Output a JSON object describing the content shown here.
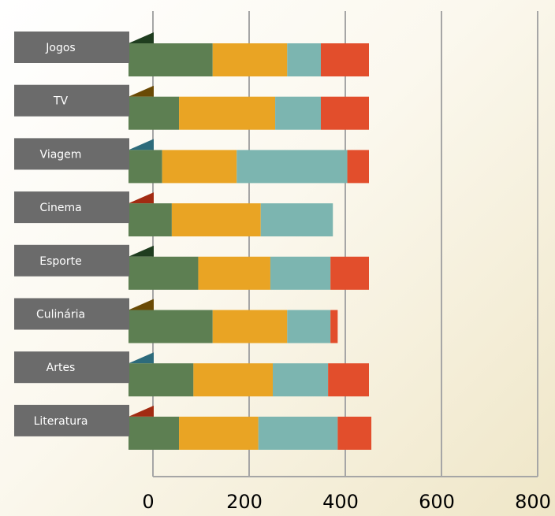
{
  "chart_data": {
    "type": "bar",
    "orientation": "horizontal",
    "stacked": true,
    "categories": [
      "Jogos",
      "TV",
      "Viagem",
      "Cinema",
      "Esporte",
      "Culinária",
      "Artes",
      "Literatura"
    ],
    "series": [
      {
        "color": "#5d7f52",
        "values": [
          175,
          105,
          70,
          90,
          145,
          175,
          135,
          105
        ]
      },
      {
        "color": "#e9a424",
        "values": [
          155,
          200,
          155,
          185,
          150,
          155,
          165,
          165
        ]
      },
      {
        "color": "#7cb5b0",
        "values": [
          70,
          95,
          230,
          150,
          125,
          90,
          115,
          165
        ]
      },
      {
        "color": "#e24e2c",
        "values": [
          100,
          100,
          45,
          0,
          80,
          15,
          85,
          70
        ]
      }
    ],
    "xlim": [
      0,
      800
    ],
    "xticks": [
      0,
      200,
      400,
      600,
      800
    ],
    "grid": true,
    "label_box_color": "#6b6b6b",
    "tab_colors": [
      "#1f3d1f",
      "#6a4a05",
      "#2d6b7b",
      "#a22b12",
      "#1f3d1f",
      "#6a4a05",
      "#2d6b7b",
      "#a22b12"
    ]
  }
}
